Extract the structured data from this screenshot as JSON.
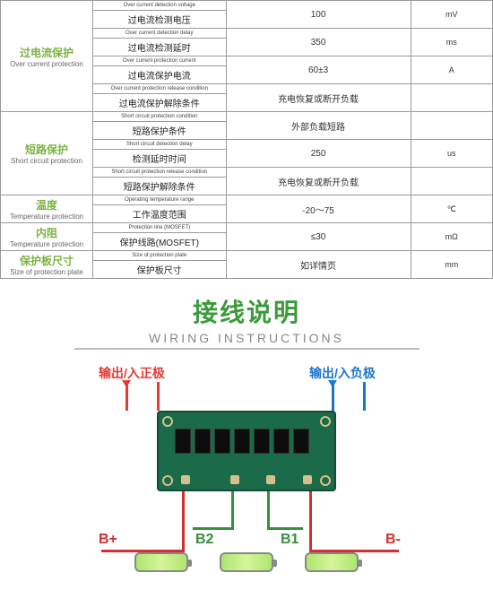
{
  "title": {
    "cn": "接线说明",
    "en": "WIRING INSTRUCTIONS"
  },
  "io_labels": {
    "pos": "输出/入正极",
    "neg": "输出/入负极"
  },
  "terminals": {
    "bp": "B+",
    "b2": "B2",
    "b1": "B1",
    "bm": "B-"
  },
  "colors": {
    "pcb": "#1b6b4a",
    "wire_red": "#e53935",
    "wire_blue": "#1976d2",
    "title": "#3a9b3a",
    "cat": "#7cb342"
  },
  "table": [
    {
      "cat_cn": "过电流保护",
      "cat_en": "Over current protection",
      "rows": [
        {
          "le": "Over current detection voltage",
          "lc": "过电流检测电压",
          "v": "100",
          "u": "mV"
        },
        {
          "le": "Over current detection delay",
          "lc": "过电流检测延时",
          "v": "350",
          "u": "ms"
        },
        {
          "le": "Over current protection current",
          "lc": "过电流保护电流",
          "v": "60±3",
          "u": "A"
        },
        {
          "le": "Over current protection release condition",
          "lc": "过电流保护解除条件",
          "v": "充电恢复或断开负载",
          "u": ""
        }
      ]
    },
    {
      "cat_cn": "短路保护",
      "cat_en": "Short circuit protection",
      "rows": [
        {
          "le": "Short circuit protection condition",
          "lc": "短路保护条件",
          "v": "外部负载短路",
          "u": ""
        },
        {
          "le": "Short circuit detection delay",
          "lc": "检测延时时间",
          "v": "250",
          "u": "us"
        },
        {
          "le": "Short circuit protection release condition",
          "lc": "短路保护解除条件",
          "v": "充电恢复或断开负载",
          "u": ""
        }
      ]
    },
    {
      "cat_cn": "温度",
      "cat_en": "Temperature protection",
      "rows": [
        {
          "le": "Operating temperature range",
          "lc": "工作温度范围",
          "v": "-20～75",
          "u": "℃"
        }
      ]
    },
    {
      "cat_cn": "内阻",
      "cat_en": "Temperature protection",
      "rows": [
        {
          "le": "Protection line (MOSFET)",
          "lc": "保护线路(MOSFET)",
          "v": "≤30",
          "u": "mΩ"
        }
      ]
    },
    {
      "cat_cn": "保护板尺寸",
      "cat_en": "Size of protection plate",
      "rows": [
        {
          "le": "Size of protection plate",
          "lc": "保护板尺寸",
          "v": "如详情页",
          "u": "mm"
        }
      ]
    }
  ]
}
